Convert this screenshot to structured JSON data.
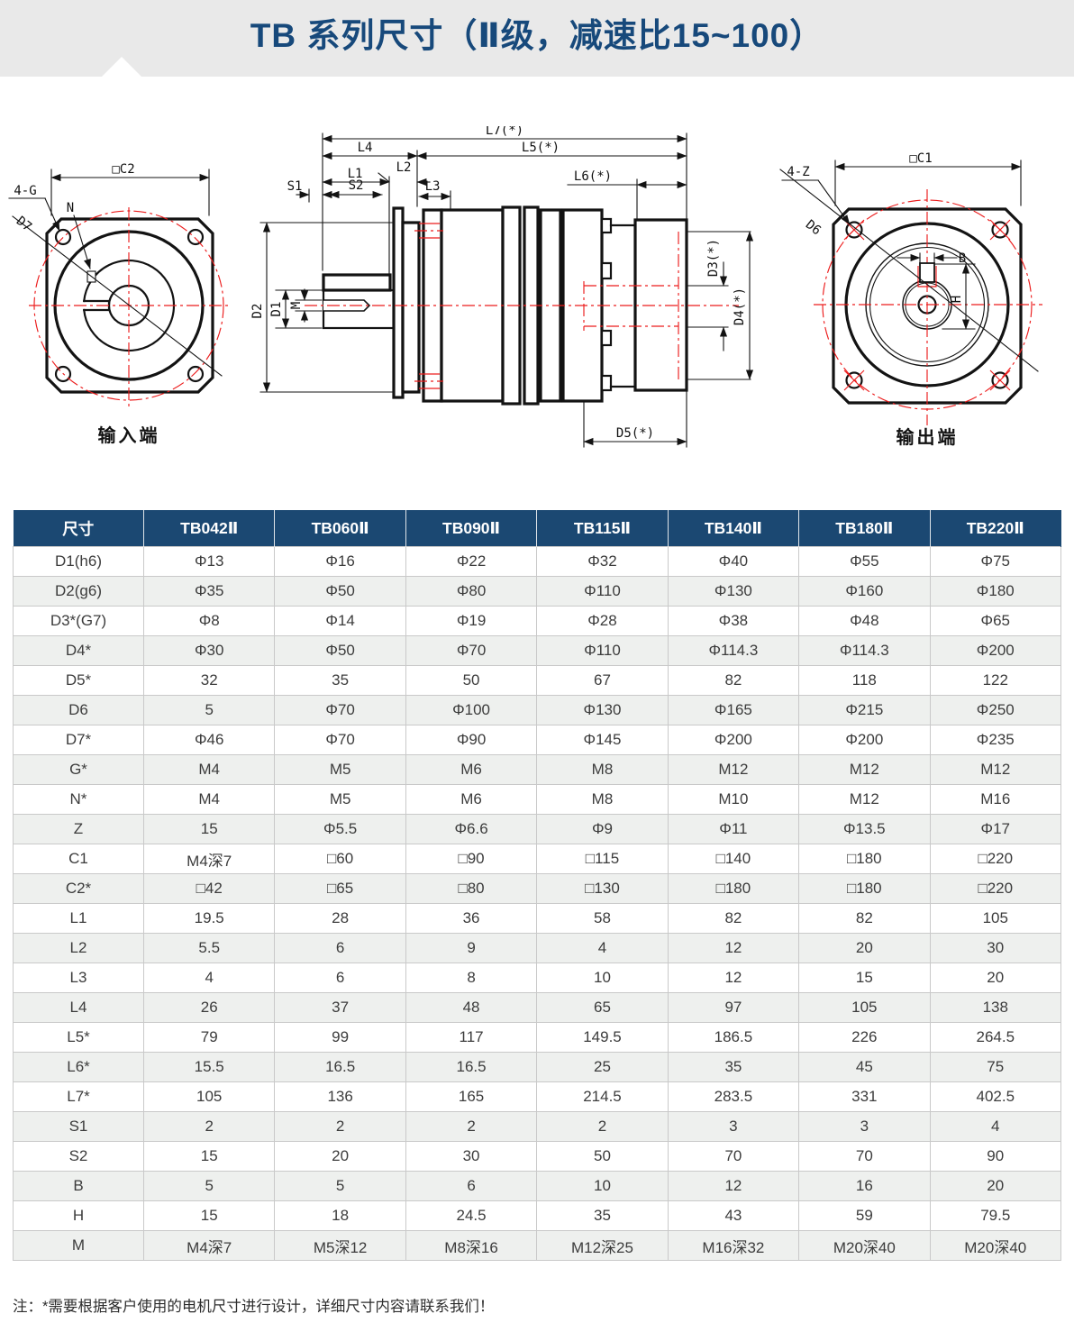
{
  "title": "TB 系列尺寸（Ⅱ级，减速比15~100）",
  "note": "注：*需要根据客户使用的电机尺寸进行设计，详细尺寸内容请联系我们！",
  "colors": {
    "header_bg": "#1b4872",
    "title_blue": "#17497b",
    "accent_red": "#ec1c1c",
    "banner_gray": "#e9e9e9",
    "row_alt": "#eef0ee"
  },
  "drawing": {
    "left": {
      "caption": "输入端",
      "labels": {
        "c2": "□C2",
        "g": "4-G",
        "n": "N",
        "d7": "D7"
      }
    },
    "middle": {
      "labels": {
        "l7": "L7(*)",
        "l5": "L5(*)",
        "l4": "L4",
        "l1": "L1",
        "l2": "L2",
        "l3": "L3",
        "s1": "S1",
        "s2": "S2",
        "l6": "L6(*)",
        "d2": "D2",
        "d1": "D1",
        "m": "M",
        "d3": "D3(*)",
        "d4": "D4(*)",
        "d5": "D5(*)"
      }
    },
    "right": {
      "caption": "输出端",
      "labels": {
        "c1": "□C1",
        "z": "4-Z",
        "d6": "D6",
        "b": "B",
        "h": "H"
      }
    }
  },
  "table": {
    "columns": [
      "尺寸",
      "TB042Ⅱ",
      "TB060Ⅱ",
      "TB090Ⅱ",
      "TB115Ⅱ",
      "TB140Ⅱ",
      "TB180Ⅱ",
      "TB220Ⅱ"
    ],
    "rows": [
      {
        "label": "D1(h6)",
        "values": [
          "Φ13",
          "Φ16",
          "Φ22",
          "Φ32",
          "Φ40",
          "Φ55",
          "Φ75"
        ]
      },
      {
        "label": "D2(g6)",
        "values": [
          "Φ35",
          "Φ50",
          "Φ80",
          "Φ110",
          "Φ130",
          "Φ160",
          "Φ180"
        ]
      },
      {
        "label": "D3*(G7)",
        "values": [
          "Φ8",
          "Φ14",
          "Φ19",
          "Φ28",
          "Φ38",
          "Φ48",
          "Φ65"
        ]
      },
      {
        "label": "D4*",
        "values": [
          "Φ30",
          "Φ50",
          "Φ70",
          "Φ110",
          "Φ114.3",
          "Φ114.3",
          "Φ200"
        ]
      },
      {
        "label": "D5*",
        "values": [
          "32",
          "35",
          "50",
          "67",
          "82",
          "118",
          "122"
        ]
      },
      {
        "label": "D6",
        "values": [
          "5",
          "Φ70",
          "Φ100",
          "Φ130",
          "Φ165",
          "Φ215",
          "Φ250"
        ]
      },
      {
        "label": "D7*",
        "values": [
          "Φ46",
          "Φ70",
          "Φ90",
          "Φ145",
          "Φ200",
          "Φ200",
          "Φ235"
        ]
      },
      {
        "label": "G*",
        "values": [
          "M4",
          "M5",
          "M6",
          "M8",
          "M12",
          "M12",
          "M12"
        ]
      },
      {
        "label": "N*",
        "values": [
          "M4",
          "M5",
          "M6",
          "M8",
          "M10",
          "M12",
          "M16"
        ]
      },
      {
        "label": "Z",
        "values": [
          "15",
          "Φ5.5",
          "Φ6.6",
          "Φ9",
          "Φ11",
          "Φ13.5",
          "Φ17"
        ]
      },
      {
        "label": "C1",
        "values": [
          "M4深7",
          "□60",
          "□90",
          "□115",
          "□140",
          "□180",
          "□220"
        ]
      },
      {
        "label": "C2*",
        "values": [
          "□42",
          "□65",
          "□80",
          "□130",
          "□180",
          "□180",
          "□220"
        ]
      },
      {
        "label": "L1",
        "values": [
          "19.5",
          "28",
          "36",
          "58",
          "82",
          "82",
          "105"
        ]
      },
      {
        "label": "L2",
        "values": [
          "5.5",
          "6",
          "9",
          "4",
          "12",
          "20",
          "30"
        ]
      },
      {
        "label": "L3",
        "values": [
          "4",
          "6",
          "8",
          "10",
          "12",
          "15",
          "20"
        ]
      },
      {
        "label": "L4",
        "values": [
          "26",
          "37",
          "48",
          "65",
          "97",
          "105",
          "138"
        ]
      },
      {
        "label": "L5*",
        "values": [
          "79",
          "99",
          "117",
          "149.5",
          "186.5",
          "226",
          "264.5"
        ]
      },
      {
        "label": "L6*",
        "values": [
          "15.5",
          "16.5",
          "16.5",
          "25",
          "35",
          "45",
          "75"
        ]
      },
      {
        "label": "L7*",
        "values": [
          "105",
          "136",
          "165",
          "214.5",
          "283.5",
          "331",
          "402.5"
        ]
      },
      {
        "label": "S1",
        "values": [
          "2",
          "2",
          "2",
          "2",
          "3",
          "3",
          "4"
        ]
      },
      {
        "label": "S2",
        "values": [
          "15",
          "20",
          "30",
          "50",
          "70",
          "70",
          "90"
        ]
      },
      {
        "label": "B",
        "values": [
          "5",
          "5",
          "6",
          "10",
          "12",
          "16",
          "20"
        ]
      },
      {
        "label": "H",
        "values": [
          "15",
          "18",
          "24.5",
          "35",
          "43",
          "59",
          "79.5"
        ]
      },
      {
        "label": "M",
        "values": [
          "M4深7",
          "M5深12",
          "M8深16",
          "M12深25",
          "M16深32",
          "M20深40",
          "M20深40"
        ]
      }
    ]
  }
}
